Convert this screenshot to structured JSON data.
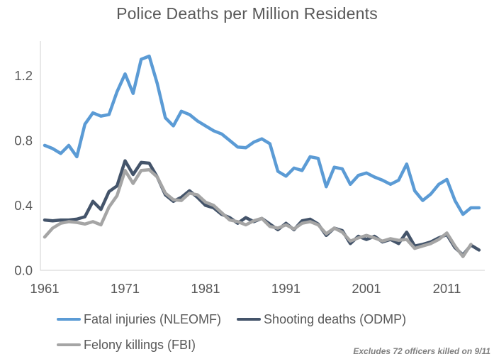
{
  "title": "Police Deaths per Million Residents",
  "colors": {
    "fatal_injuries": "#5B9BD5",
    "shooting_deaths": "#44546A",
    "felony_killings": "#A5A5A5",
    "axis_line": "#D9D9D9",
    "text": "#595959",
    "note_text": "#7F7F7F"
  },
  "chart_data": {
    "type": "line",
    "title": "Police Deaths per Million Residents",
    "xlabel": "",
    "ylabel": "",
    "grid": false,
    "legend_position": "bottom",
    "annotation": "Excludes 72 officers killed on 9/11",
    "x_ticks": [
      1961,
      1971,
      1981,
      1991,
      2001,
      2011
    ],
    "y_ticks": [
      "0.0",
      "0.4",
      "0.8",
      "1.2"
    ],
    "ylim": [
      0,
      1.4
    ],
    "x": [
      1961,
      1962,
      1963,
      1964,
      1965,
      1966,
      1967,
      1968,
      1969,
      1970,
      1971,
      1972,
      1973,
      1974,
      1975,
      1976,
      1977,
      1978,
      1979,
      1980,
      1981,
      1982,
      1983,
      1984,
      1985,
      1986,
      1987,
      1988,
      1989,
      1990,
      1991,
      1992,
      1993,
      1994,
      1995,
      1996,
      1997,
      1998,
      1999,
      2000,
      2001,
      2002,
      2003,
      2004,
      2005,
      2006,
      2007,
      2008,
      2009,
      2010,
      2011,
      2012,
      2013,
      2014,
      2015
    ],
    "series": [
      {
        "name": "Fatal injuries (NLEOMF)",
        "color": "#5B9BD5",
        "values": [
          0.77,
          0.75,
          0.72,
          0.77,
          0.7,
          0.9,
          0.97,
          0.95,
          0.96,
          1.1,
          1.21,
          1.09,
          1.3,
          1.32,
          1.15,
          0.94,
          0.89,
          0.98,
          0.96,
          0.92,
          0.89,
          0.86,
          0.84,
          0.8,
          0.76,
          0.755,
          0.79,
          0.81,
          0.78,
          0.61,
          0.58,
          0.63,
          0.615,
          0.7,
          0.69,
          0.515,
          0.635,
          0.625,
          0.53,
          0.585,
          0.6,
          0.575,
          0.555,
          0.53,
          0.555,
          0.655,
          0.49,
          0.43,
          0.47,
          0.53,
          0.56,
          0.43,
          0.345,
          0.385,
          0.385
        ]
      },
      {
        "name": "Shooting deaths (ODMP)",
        "color": "#44546A",
        "values": [
          0.31,
          0.305,
          0.31,
          0.31,
          0.315,
          0.33,
          0.425,
          0.375,
          0.485,
          0.52,
          0.675,
          0.59,
          0.665,
          0.66,
          0.575,
          0.465,
          0.425,
          0.45,
          0.49,
          0.45,
          0.4,
          0.385,
          0.345,
          0.325,
          0.29,
          0.325,
          0.3,
          0.32,
          0.285,
          0.25,
          0.29,
          0.25,
          0.305,
          0.315,
          0.285,
          0.215,
          0.26,
          0.245,
          0.165,
          0.21,
          0.19,
          0.21,
          0.175,
          0.19,
          0.165,
          0.235,
          0.15,
          0.16,
          0.175,
          0.2,
          0.22,
          0.14,
          0.095,
          0.155,
          0.125
        ]
      },
      {
        "name": "Felony killings (FBI)",
        "color": "#A5A5A5",
        "values": [
          0.205,
          0.26,
          0.29,
          0.3,
          0.295,
          0.285,
          0.3,
          0.28,
          0.39,
          0.46,
          0.615,
          0.535,
          0.615,
          0.62,
          0.575,
          0.475,
          0.435,
          0.43,
          0.475,
          0.465,
          0.42,
          0.4,
          0.355,
          0.31,
          0.3,
          0.28,
          0.305,
          0.32,
          0.27,
          0.26,
          0.28,
          0.255,
          0.29,
          0.3,
          0.28,
          0.225,
          0.26,
          0.235,
          0.18,
          0.2,
          0.215,
          0.2,
          0.18,
          0.195,
          0.185,
          0.19,
          0.135,
          0.15,
          0.165,
          0.19,
          0.23,
          0.15,
          0.085,
          0.16
        ]
      }
    ]
  }
}
